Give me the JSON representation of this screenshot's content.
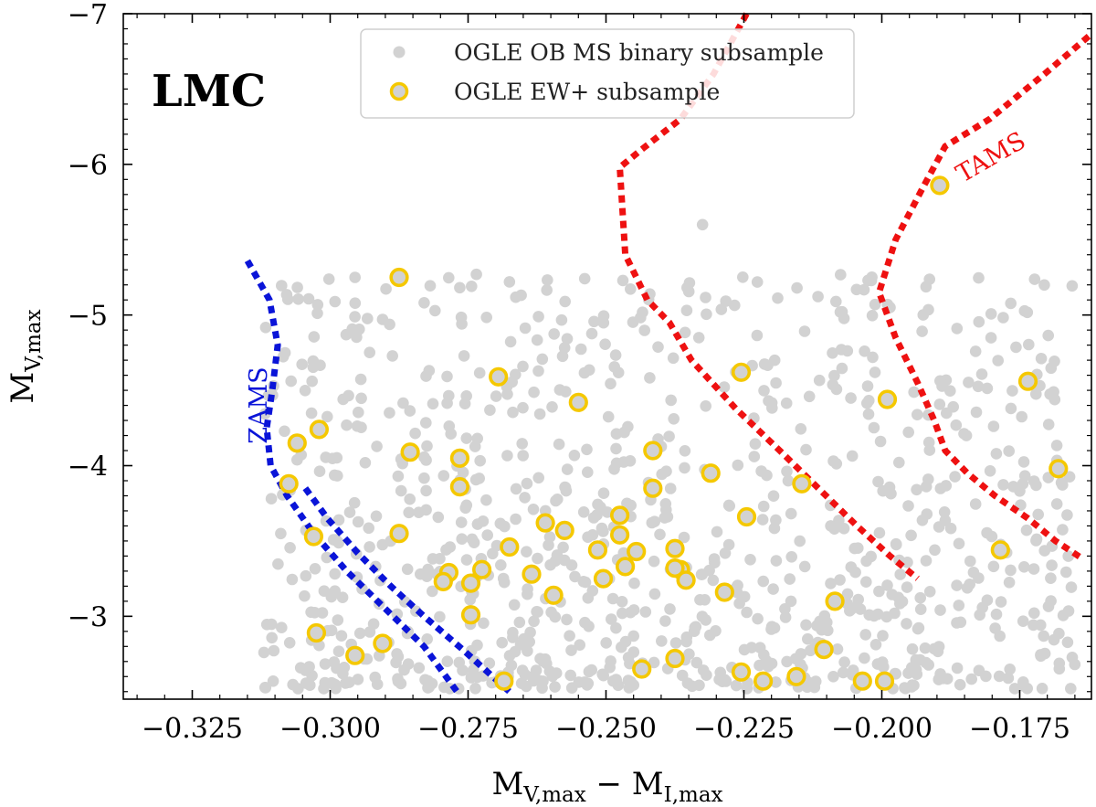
{
  "chart_data": {
    "type": "scatter",
    "title": "",
    "panel_label": "LMC",
    "xlabel": {
      "base": "M",
      "sub1": "V,max",
      "mid": " − M",
      "sub2": "I,max"
    },
    "ylabel": {
      "base": "M",
      "sub": "V,max"
    },
    "xlim": [
      -0.3375,
      -0.162
    ],
    "ylim": [
      -2.45,
      -7.0
    ],
    "x_ticks": [
      -0.325,
      -0.3,
      -0.275,
      -0.25,
      -0.225,
      -0.2,
      -0.175
    ],
    "x_tick_labels": [
      "−0.325",
      "−0.300",
      "−0.275",
      "−0.250",
      "−0.225",
      "−0.200",
      "−0.175"
    ],
    "y_ticks": [
      -3,
      -4,
      -5,
      -6,
      -7
    ],
    "y_tick_labels": [
      "−3",
      "−4",
      "−5",
      "−6",
      "−7"
    ],
    "legend_position": "top-center",
    "legend": [
      {
        "label": "OGLE OB MS binary subsample",
        "marker": "gray-dot"
      },
      {
        "label": "OGLE EW+ subsample",
        "marker": "gold-ring"
      }
    ],
    "colors": {
      "gray": "#d2d2d2",
      "gold": "#f5c800",
      "blue": "#0a14d8",
      "red": "#ee1111"
    },
    "curves": [
      {
        "name": "ZAMS",
        "label": "ZAMS",
        "color": "#0a14d8",
        "points": [
          [
            -0.315,
            -5.36
          ],
          [
            -0.311,
            -5.1
          ],
          [
            -0.3095,
            -4.8
          ],
          [
            -0.3105,
            -4.5
          ],
          [
            -0.3115,
            -4.25
          ],
          [
            -0.3108,
            -4.0
          ],
          [
            -0.3078,
            -3.8
          ],
          [
            -0.303,
            -3.55
          ],
          [
            -0.297,
            -3.3
          ],
          [
            -0.29,
            -3.05
          ],
          [
            -0.283,
            -2.8
          ],
          [
            -0.277,
            -2.5
          ]
        ]
      },
      {
        "name": "ZAMS-lower",
        "label": "",
        "color": "#0a14d8",
        "points": [
          [
            -0.3045,
            -3.85
          ],
          [
            -0.3005,
            -3.65
          ],
          [
            -0.295,
            -3.42
          ],
          [
            -0.289,
            -3.2
          ],
          [
            -0.283,
            -3.0
          ],
          [
            -0.276,
            -2.78
          ],
          [
            -0.2675,
            -2.5
          ]
        ]
      },
      {
        "name": "TAMS-inner",
        "label": "",
        "color": "#ee1111",
        "points": [
          [
            -0.2245,
            -7.0
          ],
          [
            -0.2305,
            -6.6
          ],
          [
            -0.2365,
            -6.3
          ],
          [
            -0.2435,
            -6.1
          ],
          [
            -0.2475,
            -5.98
          ],
          [
            -0.2465,
            -5.4
          ],
          [
            -0.2425,
            -5.1
          ],
          [
            -0.2385,
            -4.95
          ],
          [
            -0.2345,
            -4.7
          ],
          [
            -0.2265,
            -4.38
          ],
          [
            -0.2185,
            -4.1
          ],
          [
            -0.2115,
            -3.85
          ],
          [
            -0.2045,
            -3.6
          ],
          [
            -0.1985,
            -3.4
          ],
          [
            -0.1935,
            -3.25
          ]
        ]
      },
      {
        "name": "TAMS-outer",
        "label": "TAMS",
        "color": "#ee1111",
        "points": [
          [
            -0.1625,
            -6.85
          ],
          [
            -0.1705,
            -6.6
          ],
          [
            -0.1805,
            -6.3
          ],
          [
            -0.1885,
            -6.12
          ],
          [
            -0.1925,
            -5.85
          ],
          [
            -0.1975,
            -5.5
          ],
          [
            -0.2005,
            -5.15
          ],
          [
            -0.1975,
            -4.85
          ],
          [
            -0.1935,
            -4.55
          ],
          [
            -0.1905,
            -4.3
          ],
          [
            -0.1885,
            -4.1
          ],
          [
            -0.1845,
            -3.95
          ],
          [
            -0.1795,
            -3.8
          ],
          [
            -0.1735,
            -3.65
          ],
          [
            -0.1685,
            -3.5
          ],
          [
            -0.1635,
            -3.38
          ]
        ]
      }
    ],
    "curve_labels": [
      {
        "text": "ZAMS",
        "x": -0.3115,
        "y": -4.4,
        "rotation": -90,
        "color": "#0a14d8"
      },
      {
        "text": "TAMS",
        "x": -0.1795,
        "y": -6.0,
        "rotation": -30,
        "color": "#ee1111"
      }
    ],
    "series": [
      {
        "name": "OGLE EW+ subsample",
        "x": [
          -0.2875,
          -0.2695,
          -0.255,
          -0.2255,
          -0.199,
          -0.1735,
          -0.306,
          -0.302,
          -0.2855,
          -0.2765,
          -0.2765,
          -0.2415,
          -0.2415,
          -0.231,
          -0.2145,
          -0.1895,
          -0.168,
          -0.3075,
          -0.303,
          -0.2875,
          -0.2675,
          -0.261,
          -0.2575,
          -0.2475,
          -0.2475,
          -0.2515,
          -0.2445,
          -0.2375,
          -0.2245,
          -0.2635,
          -0.2595,
          -0.2465,
          -0.2505,
          -0.2725,
          -0.2785,
          -0.2795,
          -0.2745,
          -0.2365,
          -0.2375,
          -0.2355,
          -0.2285,
          -0.2085,
          -0.2745,
          -0.3025,
          -0.2905,
          -0.2955,
          -0.2685,
          -0.2435,
          -0.2375,
          -0.2255,
          -0.2215,
          -0.2155,
          -0.2105,
          -0.2035,
          -0.1995,
          -0.1785
        ],
        "y": [
          -5.25,
          -4.59,
          -4.42,
          -4.62,
          -4.44,
          -4.56,
          -4.15,
          -4.24,
          -4.09,
          -4.05,
          -3.86,
          -4.1,
          -3.85,
          -3.95,
          -3.88,
          -5.86,
          -3.98,
          -3.88,
          -3.53,
          -3.55,
          -3.46,
          -3.62,
          -3.57,
          -3.67,
          -3.54,
          -3.44,
          -3.43,
          -3.45,
          -3.66,
          -3.28,
          -3.14,
          -3.33,
          -3.25,
          -3.31,
          -3.29,
          -3.23,
          -3.22,
          -3.31,
          -3.32,
          -3.24,
          -3.16,
          -3.1,
          -3.01,
          -2.89,
          -2.82,
          -2.74,
          -2.57,
          -2.65,
          -2.72,
          -2.63,
          -2.57,
          -2.6,
          -2.78,
          -2.57,
          -2.57,
          -3.44
        ]
      }
    ]
  }
}
